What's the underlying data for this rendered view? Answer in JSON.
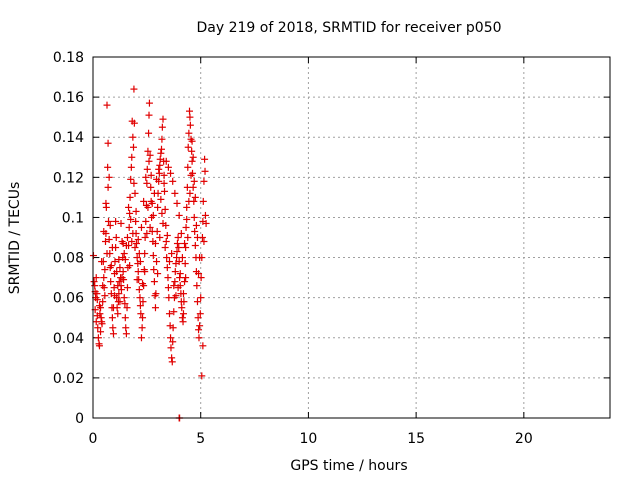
{
  "chart_data": {
    "type": "scatter",
    "title": "Day 219 of 2018, SRMTID for receiver p050",
    "xlabel": "GPS time / hours",
    "ylabel": "SRMTID / TECUs",
    "xlim": [
      0,
      24
    ],
    "ylim": [
      0,
      0.18
    ],
    "x_ticks": [
      0,
      5,
      10,
      15,
      20
    ],
    "x_tick_labels": [
      "0",
      "5",
      "10",
      "15",
      "20"
    ],
    "y_ticks": [
      0,
      0.02,
      0.04,
      0.06,
      0.08,
      0.1,
      0.12,
      0.14,
      0.16,
      0.18
    ],
    "y_tick_labels": [
      "0",
      "0.02",
      "0.04",
      "0.06",
      "0.08",
      "0.1",
      "0.12",
      "0.14",
      "0.16",
      "0.18"
    ],
    "grid": true,
    "marker": "+",
    "color": "#e00000",
    "series": [
      {
        "name": "SRMTID",
        "points": [
          [
            0.02,
            0.081
          ],
          [
            0.05,
            0.068
          ],
          [
            0.08,
            0.066
          ],
          [
            0.1,
            0.063
          ],
          [
            0.12,
            0.06
          ],
          [
            0.15,
            0.07
          ],
          [
            0.18,
            0.062
          ],
          [
            0.2,
            0.059
          ],
          [
            0.22,
            0.045
          ],
          [
            0.25,
            0.04
          ],
          [
            0.28,
            0.037
          ],
          [
            0.3,
            0.036
          ],
          [
            0.32,
            0.052
          ],
          [
            0.35,
            0.055
          ],
          [
            0.38,
            0.05
          ],
          [
            0.4,
            0.048
          ],
          [
            0.42,
            0.047
          ],
          [
            0.45,
            0.058
          ],
          [
            0.48,
            0.078
          ],
          [
            0.5,
            0.07
          ],
          [
            0.52,
            0.065
          ],
          [
            0.55,
            0.061
          ],
          [
            0.58,
            0.088
          ],
          [
            0.6,
            0.092
          ],
          [
            0.62,
            0.105
          ],
          [
            0.65,
            0.156
          ],
          [
            0.68,
            0.125
          ],
          [
            0.7,
            0.115
          ],
          [
            0.72,
            0.098
          ],
          [
            0.75,
            0.089
          ],
          [
            0.78,
            0.082
          ],
          [
            0.8,
            0.075
          ],
          [
            0.82,
            0.068
          ],
          [
            0.85,
            0.062
          ],
          [
            0.88,
            0.055
          ],
          [
            0.9,
            0.05
          ],
          [
            0.92,
            0.045
          ],
          [
            0.95,
            0.042
          ],
          [
            0.98,
            0.065
          ],
          [
            1.0,
            0.072
          ],
          [
            1.02,
            0.078
          ],
          [
            1.05,
            0.085
          ],
          [
            1.08,
            0.09
          ],
          [
            1.1,
            0.06
          ],
          [
            1.12,
            0.055
          ],
          [
            1.15,
            0.052
          ],
          [
            1.18,
            0.058
          ],
          [
            1.2,
            0.062
          ],
          [
            1.22,
            0.068
          ],
          [
            1.25,
            0.075
          ],
          [
            1.28,
            0.07
          ],
          [
            1.3,
            0.066
          ],
          [
            1.32,
            0.064
          ],
          [
            1.35,
            0.088
          ],
          [
            1.38,
            0.08
          ],
          [
            1.4,
            0.073
          ],
          [
            1.42,
            0.069
          ],
          [
            1.45,
            0.06
          ],
          [
            1.48,
            0.057
          ],
          [
            1.5,
            0.05
          ],
          [
            1.52,
            0.045
          ],
          [
            1.55,
            0.042
          ],
          [
            1.58,
            0.055
          ],
          [
            1.6,
            0.065
          ],
          [
            1.62,
            0.075
          ],
          [
            1.65,
            0.086
          ],
          [
            1.68,
            0.095
          ],
          [
            1.7,
            0.102
          ],
          [
            1.72,
            0.11
          ],
          [
            1.75,
            0.119
          ],
          [
            1.78,
            0.125
          ],
          [
            1.8,
            0.13
          ],
          [
            1.82,
            0.148
          ],
          [
            1.85,
            0.14
          ],
          [
            1.88,
            0.135
          ],
          [
            1.9,
            0.164
          ],
          [
            1.92,
            0.147
          ],
          [
            1.95,
            0.112
          ],
          [
            1.98,
            0.098
          ],
          [
            2.0,
            0.092
          ],
          [
            2.02,
            0.087
          ],
          [
            2.05,
            0.08
          ],
          [
            2.08,
            0.077
          ],
          [
            2.1,
            0.073
          ],
          [
            2.12,
            0.069
          ],
          [
            2.15,
            0.064
          ],
          [
            2.18,
            0.06
          ],
          [
            2.2,
            0.056
          ],
          [
            2.22,
            0.052
          ],
          [
            2.25,
            0.04
          ],
          [
            2.28,
            0.045
          ],
          [
            2.3,
            0.05
          ],
          [
            2.32,
            0.058
          ],
          [
            2.35,
            0.066
          ],
          [
            2.38,
            0.074
          ],
          [
            2.4,
            0.082
          ],
          [
            2.42,
            0.09
          ],
          [
            2.45,
            0.098
          ],
          [
            2.48,
            0.106
          ],
          [
            2.5,
            0.117
          ],
          [
            2.52,
            0.124
          ],
          [
            2.55,
            0.133
          ],
          [
            2.58,
            0.142
          ],
          [
            2.6,
            0.151
          ],
          [
            2.62,
            0.157
          ],
          [
            2.65,
            0.131
          ],
          [
            2.68,
            0.115
          ],
          [
            2.7,
            0.108
          ],
          [
            2.72,
            0.1
          ],
          [
            2.75,
            0.093
          ],
          [
            2.78,
            0.088
          ],
          [
            2.8,
            0.081
          ],
          [
            2.82,
            0.074
          ],
          [
            2.85,
            0.068
          ],
          [
            2.88,
            0.061
          ],
          [
            2.9,
            0.055
          ],
          [
            2.92,
            0.062
          ],
          [
            2.95,
            0.078
          ],
          [
            2.98,
            0.093
          ],
          [
            3.0,
            0.105
          ],
          [
            3.02,
            0.112
          ],
          [
            3.05,
            0.118
          ],
          [
            3.08,
            0.122
          ],
          [
            3.1,
            0.126
          ],
          [
            3.12,
            0.129
          ],
          [
            3.15,
            0.132
          ],
          [
            3.18,
            0.134
          ],
          [
            3.2,
            0.139
          ],
          [
            3.22,
            0.145
          ],
          [
            3.25,
            0.149
          ],
          [
            3.28,
            0.128
          ],
          [
            3.3,
            0.121
          ],
          [
            3.32,
            0.113
          ],
          [
            3.35,
            0.104
          ],
          [
            3.38,
            0.096
          ],
          [
            3.4,
            0.088
          ],
          [
            3.42,
            0.08
          ],
          [
            3.45,
            0.075
          ],
          [
            3.48,
            0.07
          ],
          [
            3.5,
            0.065
          ],
          [
            3.52,
            0.06
          ],
          [
            3.55,
            0.052
          ],
          [
            3.58,
            0.046
          ],
          [
            3.6,
            0.04
          ],
          [
            3.62,
            0.035
          ],
          [
            3.65,
            0.03
          ],
          [
            3.68,
            0.028
          ],
          [
            3.7,
            0.038
          ],
          [
            3.72,
            0.045
          ],
          [
            3.75,
            0.053
          ],
          [
            3.78,
            0.06
          ],
          [
            3.8,
            0.068
          ],
          [
            3.82,
            0.073
          ],
          [
            3.85,
            0.077
          ],
          [
            3.88,
            0.08
          ],
          [
            3.9,
            0.083
          ],
          [
            3.92,
            0.087
          ],
          [
            3.95,
            0.09
          ],
          [
            3.98,
            0.085
          ],
          [
            4.0,
            0.078
          ],
          [
            4.02,
            0.07
          ],
          [
            4.05,
            0.066
          ],
          [
            4.08,
            0.062
          ],
          [
            4.1,
            0.058
          ],
          [
            4.12,
            0.055
          ],
          [
            4.15,
            0.05
          ],
          [
            4.18,
            0.048
          ],
          [
            4.2,
            0.052
          ],
          [
            4.22,
            0.058
          ],
          [
            4.25,
            0.068
          ],
          [
            4.28,
            0.077
          ],
          [
            4.3,
            0.085
          ],
          [
            4.32,
            0.095
          ],
          [
            4.35,
            0.105
          ],
          [
            4.38,
            0.115
          ],
          [
            4.4,
            0.125
          ],
          [
            4.42,
            0.135
          ],
          [
            4.45,
            0.142
          ],
          [
            4.48,
            0.153
          ],
          [
            4.5,
            0.15
          ],
          [
            4.52,
            0.146
          ],
          [
            4.55,
            0.139
          ],
          [
            4.58,
            0.133
          ],
          [
            4.6,
            0.128
          ],
          [
            4.62,
            0.122
          ],
          [
            4.65,
            0.115
          ],
          [
            4.68,
            0.108
          ],
          [
            4.7,
            0.1
          ],
          [
            4.72,
            0.093
          ],
          [
            4.75,
            0.086
          ],
          [
            4.78,
            0.08
          ],
          [
            4.8,
            0.073
          ],
          [
            4.82,
            0.066
          ],
          [
            4.85,
            0.058
          ],
          [
            4.88,
            0.05
          ],
          [
            4.9,
            0.044
          ],
          [
            4.92,
            0.04
          ],
          [
            4.95,
            0.046
          ],
          [
            4.98,
            0.052
          ],
          [
            5.0,
            0.06
          ],
          [
            5.02,
            0.07
          ],
          [
            5.05,
            0.08
          ],
          [
            5.08,
            0.09
          ],
          [
            5.1,
            0.098
          ],
          [
            5.12,
            0.108
          ],
          [
            5.15,
            0.118
          ],
          [
            5.18,
            0.129
          ],
          [
            5.2,
            0.123
          ],
          [
            5.22,
            0.101
          ],
          [
            5.25,
            0.097
          ],
          [
            5.05,
            0.021
          ],
          [
            5.1,
            0.036
          ],
          [
            4.9,
            0.072
          ],
          [
            4.8,
            0.096
          ],
          [
            4.7,
            0.118
          ],
          [
            4.6,
            0.138
          ],
          [
            4.5,
            0.112
          ],
          [
            4.4,
            0.09
          ],
          [
            4.3,
            0.07
          ],
          [
            4.2,
            0.062
          ],
          [
            4.1,
            0.092
          ],
          [
            4.0,
            0.101
          ],
          [
            3.9,
            0.107
          ],
          [
            3.8,
            0.112
          ],
          [
            3.7,
            0.118
          ],
          [
            3.6,
            0.122
          ],
          [
            3.5,
            0.125
          ],
          [
            3.4,
            0.128
          ],
          [
            3.3,
            0.117
          ],
          [
            3.2,
            0.102
          ],
          [
            3.1,
            0.09
          ],
          [
            3.0,
            0.072
          ],
          [
            2.9,
            0.087
          ],
          [
            2.8,
            0.101
          ],
          [
            2.7,
            0.121
          ],
          [
            2.6,
            0.128
          ],
          [
            2.5,
            0.092
          ],
          [
            2.4,
            0.073
          ],
          [
            2.3,
            0.067
          ],
          [
            2.2,
            0.078
          ],
          [
            2.1,
            0.089
          ],
          [
            2.0,
            0.103
          ],
          [
            1.9,
            0.117
          ],
          [
            1.8,
            0.088
          ],
          [
            1.7,
            0.076
          ],
          [
            1.6,
            0.09
          ],
          [
            1.5,
            0.079
          ],
          [
            1.4,
            0.087
          ],
          [
            1.3,
            0.097
          ],
          [
            1.2,
            0.079
          ],
          [
            1.1,
            0.073
          ],
          [
            1.0,
            0.061
          ],
          [
            0.9,
            0.085
          ],
          [
            0.8,
            0.096
          ],
          [
            0.7,
            0.137
          ],
          [
            0.6,
            0.107
          ],
          [
            0.5,
            0.093
          ],
          [
            0.4,
            0.078
          ],
          [
            0.3,
            0.056
          ],
          [
            0.2,
            0.051
          ],
          [
            0.1,
            0.054
          ],
          [
            0.15,
            0.048
          ],
          [
            0.35,
            0.043
          ],
          [
            0.45,
            0.066
          ],
          [
            0.55,
            0.074
          ],
          [
            0.65,
            0.082
          ],
          [
            0.75,
            0.12
          ],
          [
            0.85,
            0.076
          ],
          [
            0.95,
            0.055
          ],
          [
            1.05,
            0.098
          ],
          [
            1.15,
            0.066
          ],
          [
            1.25,
            0.058
          ],
          [
            1.35,
            0.07
          ],
          [
            1.45,
            0.082
          ],
          [
            1.55,
            0.086
          ],
          [
            1.65,
            0.105
          ],
          [
            1.75,
            0.099
          ],
          [
            1.85,
            0.092
          ],
          [
            1.95,
            0.085
          ],
          [
            2.05,
            0.069
          ],
          [
            2.15,
            0.082
          ],
          [
            2.25,
            0.095
          ],
          [
            2.35,
            0.108
          ],
          [
            2.45,
            0.12
          ],
          [
            2.55,
            0.105
          ],
          [
            2.65,
            0.095
          ],
          [
            2.75,
            0.107
          ],
          [
            2.85,
            0.112
          ],
          [
            2.95,
            0.119
          ],
          [
            3.05,
            0.124
          ],
          [
            3.15,
            0.109
          ],
          [
            3.25,
            0.097
          ],
          [
            3.35,
            0.085
          ],
          [
            3.45,
            0.091
          ],
          [
            3.55,
            0.078
          ],
          [
            3.65,
            0.082
          ],
          [
            3.75,
            0.066
          ],
          [
            3.85,
            0.061
          ],
          [
            3.95,
            0.065
          ],
          [
            4.05,
            0.072
          ],
          [
            4.15,
            0.08
          ],
          [
            4.25,
            0.087
          ],
          [
            4.35,
            0.099
          ],
          [
            4.45,
            0.108
          ],
          [
            4.55,
            0.121
          ],
          [
            4.65,
            0.13
          ],
          [
            4.75,
            0.11
          ],
          [
            4.85,
            0.09
          ],
          [
            4.95,
            0.08
          ],
          [
            5.15,
            0.088
          ],
          [
            4.0,
            0.0
          ],
          [
            4.02,
            0.0
          ]
        ]
      }
    ]
  }
}
